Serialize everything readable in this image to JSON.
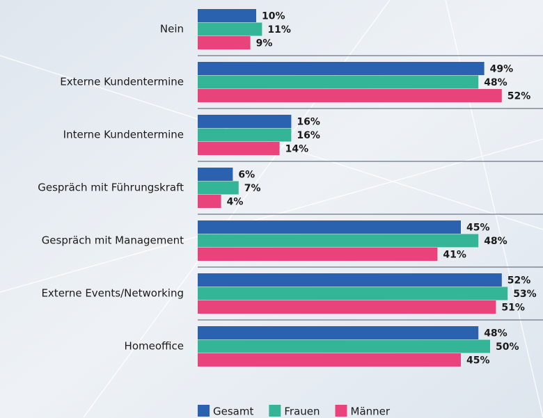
{
  "chart_data": {
    "type": "bar",
    "orientation": "horizontal",
    "categories": [
      "Nein",
      "Externe Kundentermine",
      "Interne Kundentermine",
      "Gespräch mit Führungskraft",
      "Gespräch mit Management",
      "Externe Events/Networking",
      "Homeoffice"
    ],
    "series": [
      {
        "name": "Gesamt",
        "color": "#2b62b0",
        "values": [
          10,
          49,
          16,
          6,
          45,
          52,
          48
        ],
        "value_labels": [
          "10%",
          "49%",
          "16%",
          "6%",
          "45%",
          "52%",
          "48%"
        ]
      },
      {
        "name": "Frauen",
        "color": "#35b597",
        "values": [
          11,
          48,
          16,
          7,
          48,
          53,
          50
        ],
        "value_labels": [
          "11%",
          "48%",
          "16%",
          "7%",
          "48%",
          "53%",
          "50%"
        ]
      },
      {
        "name": "Männer",
        "color": "#e8437a",
        "values": [
          9,
          52,
          14,
          4,
          41,
          51,
          45
        ],
        "value_labels": [
          "9%",
          "52%",
          "14%",
          "4%",
          "41%",
          "51%",
          "45%"
        ]
      }
    ]
  }
}
